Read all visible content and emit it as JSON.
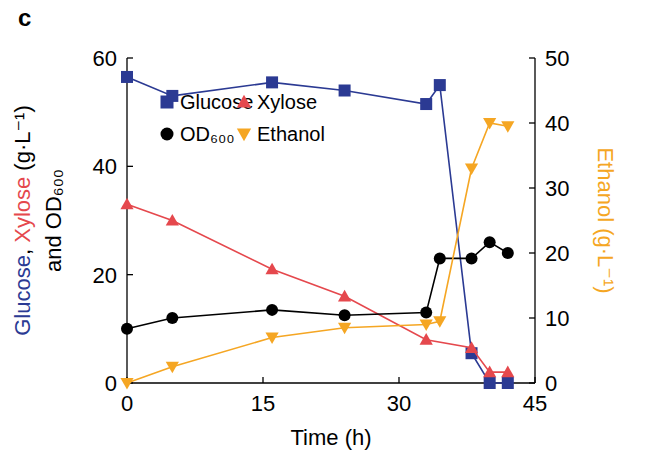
{
  "chart_data": {
    "type": "line",
    "title": "c",
    "xlabel": "Time (h)",
    "ylabel": [
      "Glucose, Xylose (g·L⁻¹)",
      "and OD₆₀₀"
    ],
    "y2label": "Ethanol (g·L⁻¹)",
    "xlim": [
      0,
      45
    ],
    "xticks": [
      0,
      15,
      30,
      45
    ],
    "ylim": [
      0,
      60
    ],
    "yticks": [
      0,
      20,
      40,
      60
    ],
    "y2lim": [
      0,
      50
    ],
    "y2ticks": [
      0,
      10,
      20,
      30,
      40,
      50
    ],
    "grid": false,
    "legend": "upper left",
    "series": [
      {
        "name": "Glucose",
        "color": "#2b3a93",
        "marker": "square",
        "x": [
          0,
          5,
          16,
          24,
          33,
          34.5,
          38,
          40,
          42
        ],
        "values": [
          56.5,
          53,
          55.5,
          54,
          51.5,
          55,
          5.5,
          0,
          0
        ]
      },
      {
        "name": "Xylose",
        "color": "#e5484d",
        "marker": "triangle-up",
        "x": [
          0,
          5,
          16,
          24,
          33,
          38,
          40,
          42
        ],
        "values": [
          33,
          30,
          21,
          16,
          8,
          6.5,
          2,
          2
        ]
      },
      {
        "name": "OD₆₀₀",
        "color": "#000000",
        "marker": "circle",
        "x": [
          0,
          5,
          16,
          24,
          33,
          34.5,
          38,
          40,
          42
        ],
        "values": [
          10,
          12,
          13.5,
          12.5,
          13,
          23,
          23,
          26,
          24
        ]
      },
      {
        "name": "Ethanol",
        "color": "#f5a623",
        "marker": "triangle-down",
        "axis": "y2",
        "x": [
          0,
          5,
          16,
          24,
          33,
          34.5,
          38,
          40,
          42
        ],
        "values": [
          0,
          2.5,
          7,
          8.5,
          9,
          9.5,
          33,
          40,
          39.5
        ]
      }
    ]
  }
}
